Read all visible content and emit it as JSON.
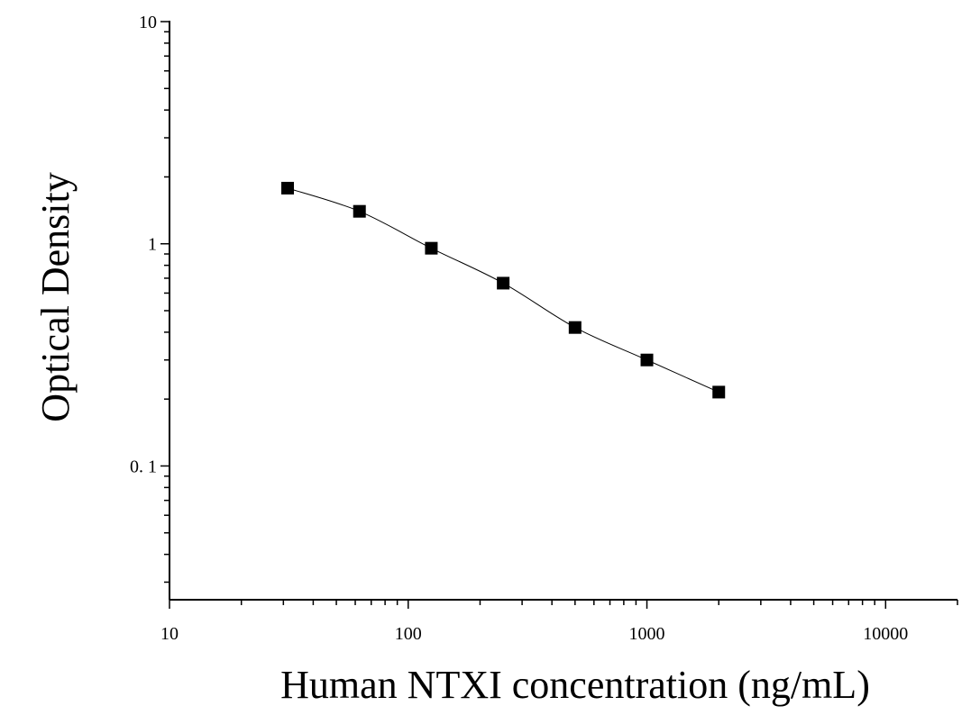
{
  "chart_data": {
    "type": "scatter",
    "title": "",
    "xlabel": "Human NTXI concentration (ng/mL)",
    "ylabel": "Optical Density",
    "x_scale": "log",
    "y_scale": "log",
    "xlim": [
      10,
      20000
    ],
    "ylim": [
      0.025,
      10
    ],
    "x_ticks": [
      {
        "value": 10,
        "label": "10"
      },
      {
        "value": 100,
        "label": "100"
      },
      {
        "value": 1000,
        "label": "1000"
      },
      {
        "value": 10000,
        "label": "10000"
      }
    ],
    "y_ticks": [
      {
        "value": 0.1,
        "label": "0. 1"
      },
      {
        "value": 1,
        "label": "1"
      },
      {
        "value": 10,
        "label": "10"
      }
    ],
    "grid": false,
    "legend": "none",
    "series": [
      {
        "x": [
          31.25,
          62.5,
          125,
          250,
          500,
          1000,
          2000
        ],
        "y": [
          1.78,
          1.4,
          0.955,
          0.665,
          0.42,
          0.3,
          0.215
        ],
        "marker": "square",
        "color": "#000000",
        "fit_line": "smooth"
      }
    ]
  }
}
